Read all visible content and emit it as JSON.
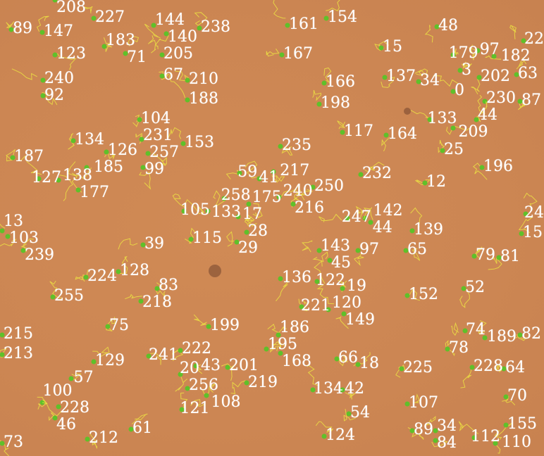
{
  "image": {
    "background_color": "#cc8653",
    "label_color": "#ffffff",
    "marker_color": "#5fc02a",
    "track_color": "#f0ee40",
    "track_labels": [
      "208",
      "89",
      "147",
      "227",
      "144",
      "140",
      "238",
      "161",
      "154",
      "48",
      "123",
      "183",
      "71",
      "205",
      "167",
      "15",
      "179",
      "97",
      "182",
      "22",
      "3",
      "240",
      "67",
      "210",
      "166",
      "137",
      "34",
      "0",
      "202",
      "63",
      "92",
      "188",
      "198",
      "230",
      "87",
      "104",
      "133",
      "44",
      "209",
      "117",
      "164",
      "134",
      "231",
      "153",
      "235",
      "25",
      "187",
      "126",
      "257",
      "185",
      "99",
      "196",
      "59",
      "41",
      "217",
      "232",
      "12",
      "127",
      "138",
      "177",
      "250",
      "240",
      "258",
      "175",
      "216",
      "105",
      "133",
      "17",
      "247",
      "142",
      "44",
      "24",
      "13",
      "103",
      "115",
      "28",
      "29",
      "139",
      "15",
      "239",
      "39",
      "143",
      "97",
      "65",
      "79",
      "81",
      "45",
      "128",
      "224",
      "136",
      "122",
      "52",
      "83",
      "19",
      "152",
      "255",
      "218",
      "221",
      "120",
      "149",
      "75",
      "199",
      "74",
      "215",
      "186",
      "189",
      "82",
      "213",
      "78",
      "195",
      "168",
      "241",
      "222",
      "129",
      "43",
      "66",
      "18",
      "20",
      "201",
      "228",
      "64",
      "225",
      "57",
      "219",
      "256",
      "108",
      "134",
      "42",
      "70",
      "100",
      "228",
      "107",
      "121",
      "46",
      "54",
      "155",
      "61",
      "212",
      "124",
      "89",
      "34",
      "84",
      "112",
      "110",
      "73"
    ]
  }
}
